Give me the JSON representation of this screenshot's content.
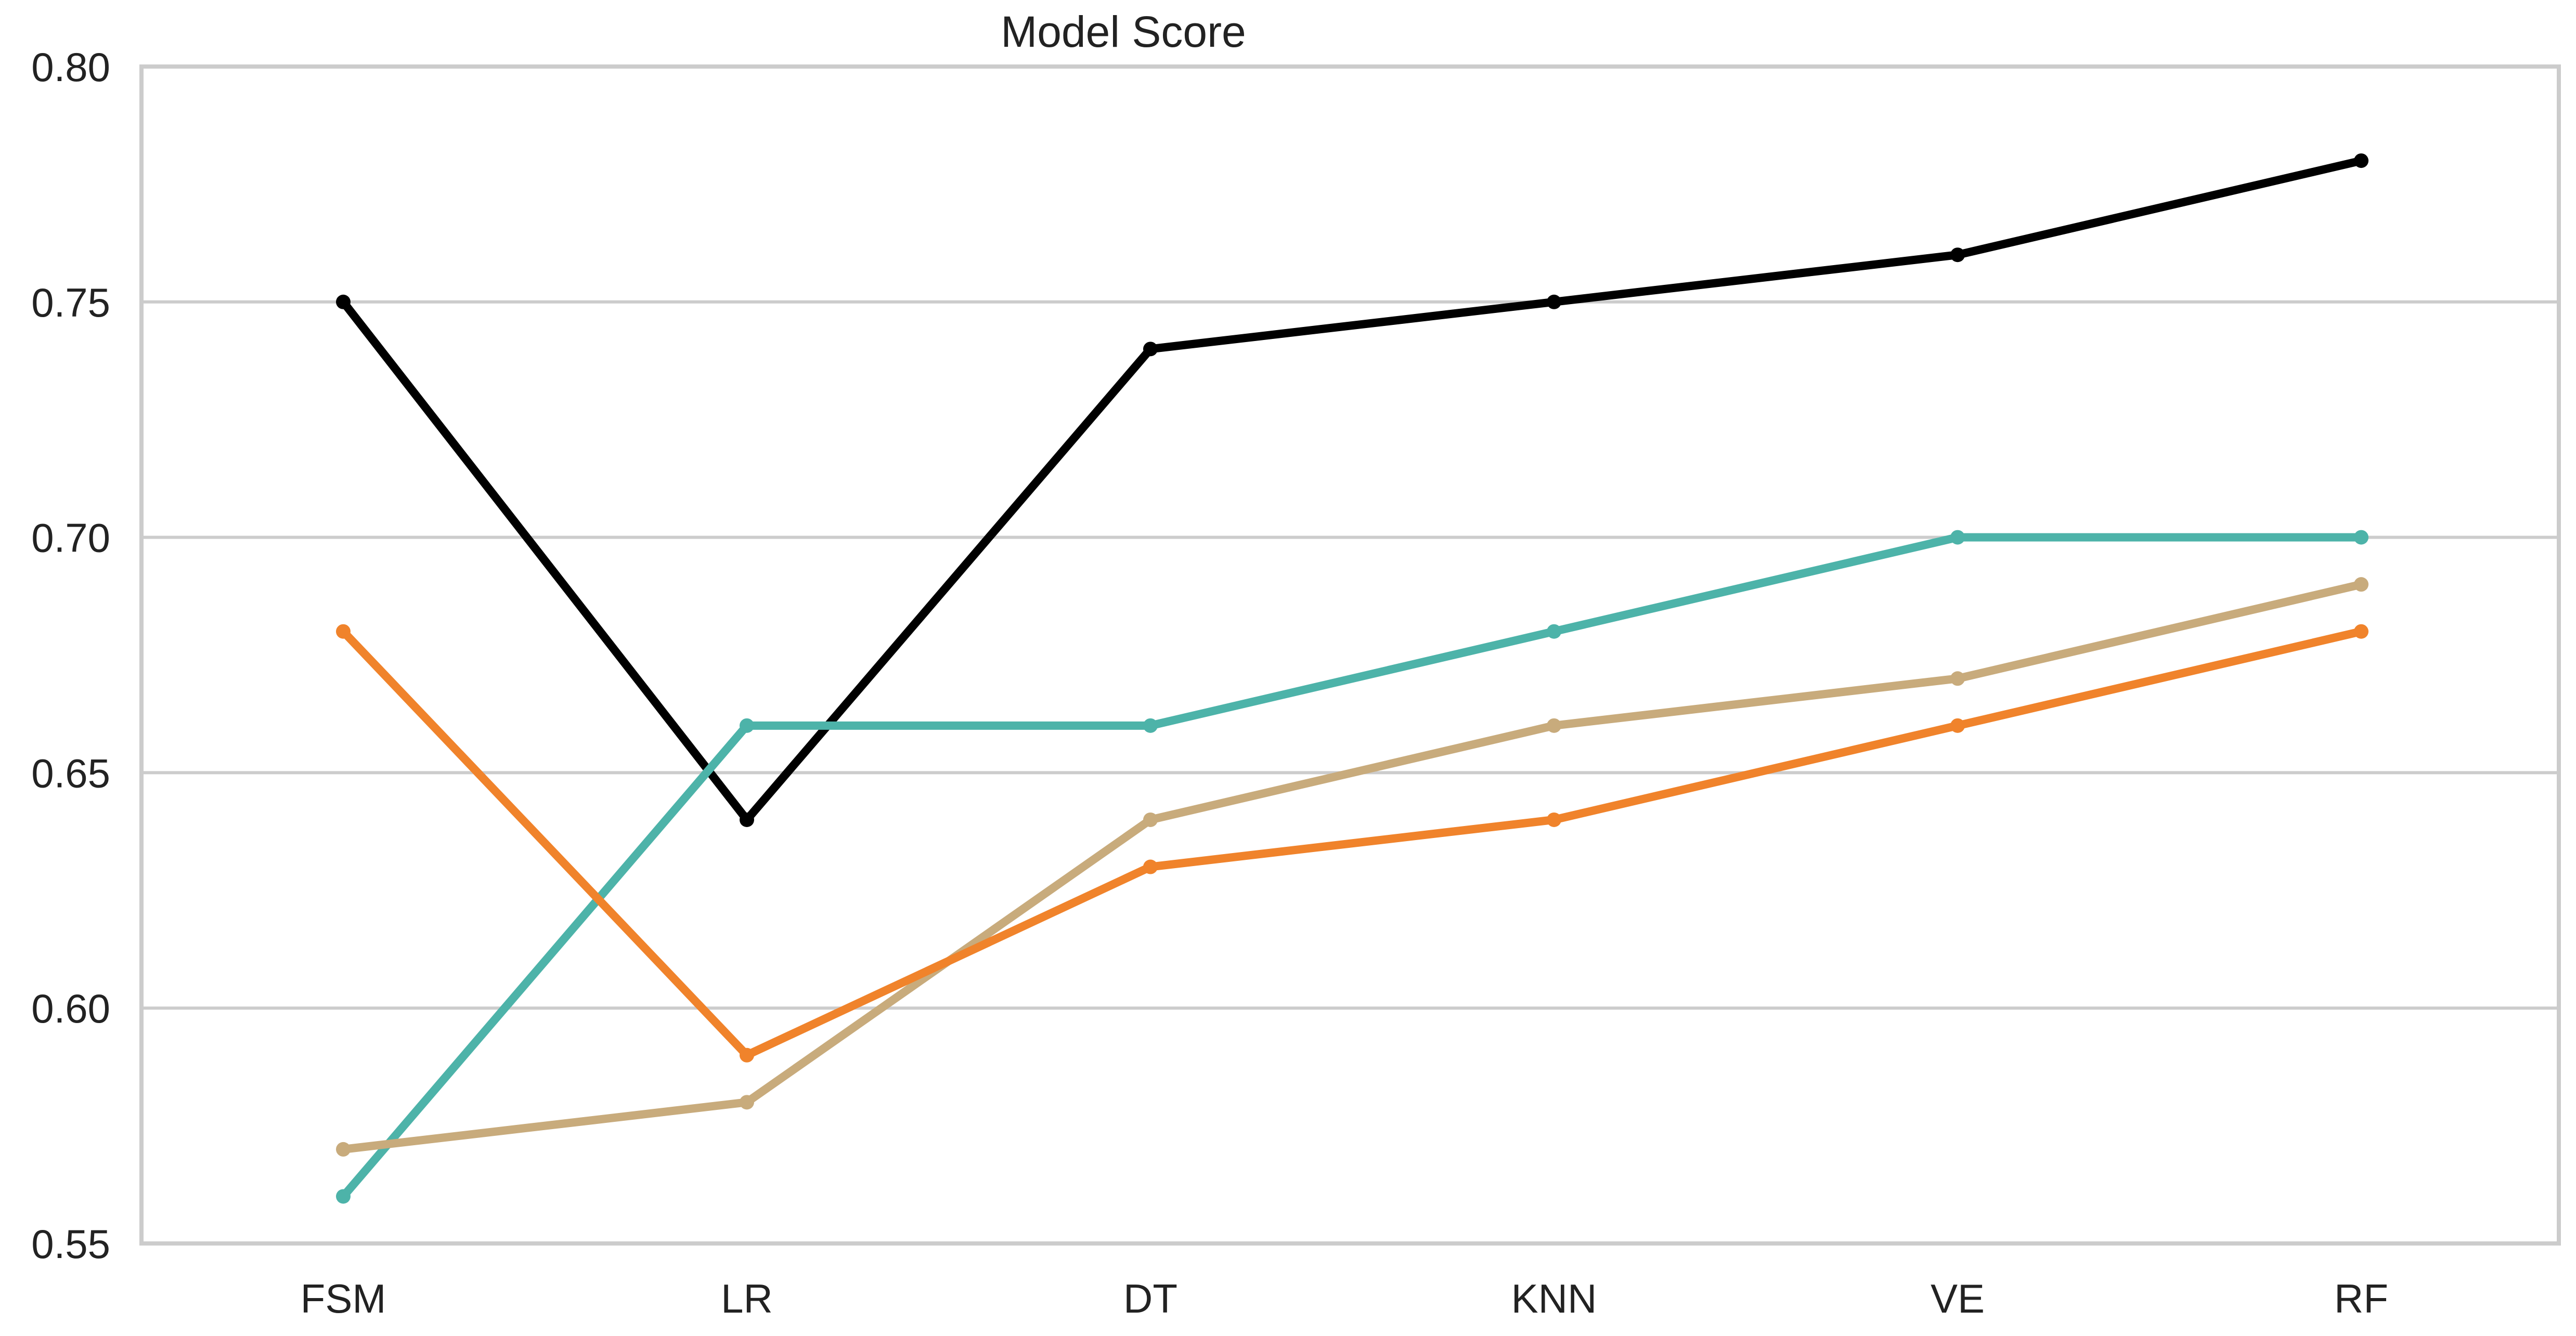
{
  "chart_data": {
    "type": "line",
    "title": "Model Score",
    "xlabel": "",
    "ylabel": "",
    "categories": [
      "FSM",
      "LR",
      "DT",
      "KNN",
      "VE",
      "RF"
    ],
    "ylim": [
      0.55,
      0.8
    ],
    "yticks": [
      "0.55",
      "0.60",
      "0.65",
      "0.70",
      "0.75",
      "0.80"
    ],
    "grid": "horizontal",
    "legend": "none",
    "series": [
      {
        "color": "#000000",
        "values": [
          0.75,
          0.64,
          0.74,
          0.75,
          0.76,
          0.78
        ]
      },
      {
        "color": "#4db3a9",
        "values": [
          0.56,
          0.66,
          0.66,
          0.68,
          0.7,
          0.7
        ]
      },
      {
        "color": "#c8ab7c",
        "values": [
          0.57,
          0.58,
          0.64,
          0.66,
          0.67,
          0.69
        ]
      },
      {
        "color": "#f0832b",
        "values": [
          0.68,
          0.59,
          0.63,
          0.64,
          0.66,
          0.68
        ]
      }
    ]
  }
}
